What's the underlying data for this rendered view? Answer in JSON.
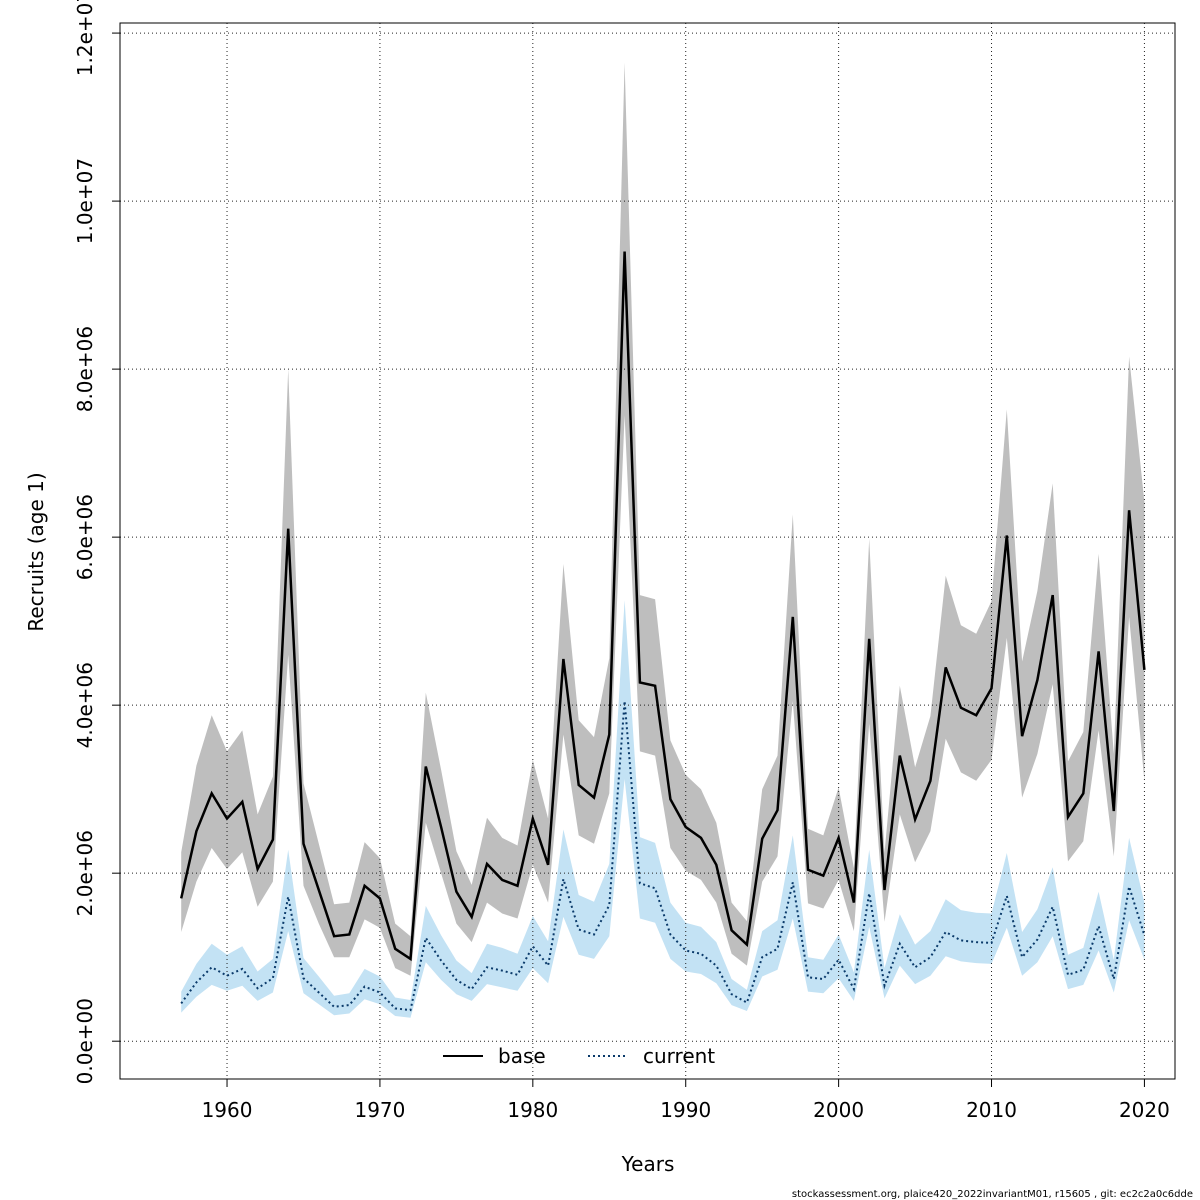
{
  "chart_data": {
    "type": "line",
    "xlabel": "Years",
    "ylabel": "Recruits (age 1)",
    "xlim": [
      1953,
      2022
    ],
    "ylim": [
      -450000,
      12120000
    ],
    "x_ticks": [
      1960,
      1970,
      1980,
      1990,
      2000,
      2010,
      2020
    ],
    "y_ticks": [
      0,
      2000000,
      4000000,
      6000000,
      8000000,
      10000000,
      12000000
    ],
    "y_tick_labels": [
      "0.0e+00",
      "2.0e+06",
      "4.0e+06",
      "6.0e+06",
      "8.0e+06",
      "1.0e+07",
      "1.2e+07"
    ],
    "grid": true,
    "legend_position": "bottom-center",
    "footer": "stockassessment.org, plaice420_2022invariantM01, r15605 , git: ec2c2a0c6dde",
    "x": [
      1957,
      1958,
      1959,
      1960,
      1961,
      1962,
      1963,
      1964,
      1965,
      1966,
      1967,
      1968,
      1969,
      1970,
      1971,
      1972,
      1973,
      1974,
      1975,
      1976,
      1977,
      1978,
      1979,
      1980,
      1981,
      1982,
      1983,
      1984,
      1985,
      1986,
      1987,
      1988,
      1989,
      1990,
      1991,
      1992,
      1993,
      1994,
      1995,
      1996,
      1997,
      1998,
      1999,
      2000,
      2001,
      2002,
      2003,
      2004,
      2005,
      2006,
      2007,
      2008,
      2009,
      2010,
      2011,
      2012,
      2013,
      2014,
      2015,
      2016,
      2017,
      2018,
      2019,
      2020
    ],
    "series": [
      {
        "name": "base",
        "line_color": "#000000",
        "band_color": "#bebebe",
        "dash": "solid",
        "values": [
          1700000,
          2500000,
          2950000,
          2650000,
          2850000,
          2050000,
          2400000,
          6100000,
          2350000,
          1800000,
          1250000,
          1270000,
          1850000,
          1700000,
          1100000,
          980000,
          3270000,
          2550000,
          1780000,
          1480000,
          2110000,
          1920000,
          1850000,
          2650000,
          2100000,
          4550000,
          3050000,
          2900000,
          3650000,
          9400000,
          4270000,
          4230000,
          2880000,
          2550000,
          2420000,
          2100000,
          1320000,
          1150000,
          2410000,
          2750000,
          5050000,
          2040000,
          1970000,
          2420000,
          1650000,
          4790000,
          1800000,
          3400000,
          2640000,
          3100000,
          4450000,
          3970000,
          3880000,
          4200000,
          6020000,
          3630000,
          4300000,
          5310000,
          2670000,
          2950000,
          4640000,
          2740000,
          6320000,
          4420000
        ],
        "lower": [
          1300000,
          1900000,
          2300000,
          2050000,
          2250000,
          1600000,
          1900000,
          4600000,
          1850000,
          1400000,
          1000000,
          1000000,
          1450000,
          1350000,
          870000,
          780000,
          2600000,
          2000000,
          1400000,
          1180000,
          1650000,
          1520000,
          1460000,
          2100000,
          1650000,
          3650000,
          2450000,
          2350000,
          2950000,
          7450000,
          3450000,
          3400000,
          2300000,
          2030000,
          1920000,
          1650000,
          1040000,
          900000,
          1900000,
          2200000,
          4050000,
          1640000,
          1580000,
          1920000,
          1310000,
          3780000,
          1420000,
          2700000,
          2130000,
          2500000,
          3600000,
          3200000,
          3100000,
          3350000,
          4800000,
          2900000,
          3420000,
          4250000,
          2140000,
          2380000,
          3700000,
          2200000,
          5050000,
          3100000
        ],
        "upper": [
          2250000,
          3280000,
          3880000,
          3450000,
          3700000,
          2700000,
          3150000,
          8000000,
          3070000,
          2350000,
          1630000,
          1650000,
          2370000,
          2180000,
          1400000,
          1250000,
          4150000,
          3230000,
          2260000,
          1860000,
          2660000,
          2420000,
          2330000,
          3350000,
          2650000,
          5680000,
          3820000,
          3620000,
          4560000,
          11650000,
          5310000,
          5260000,
          3580000,
          3170000,
          3000000,
          2600000,
          1650000,
          1430000,
          3000000,
          3400000,
          6270000,
          2530000,
          2450000,
          3020000,
          2060000,
          5980000,
          2240000,
          4230000,
          3260000,
          3870000,
          5540000,
          4950000,
          4850000,
          5240000,
          7520000,
          4520000,
          5360000,
          6640000,
          3330000,
          3680000,
          5800000,
          3420000,
          8150000,
          6420000
        ]
      },
      {
        "name": "current",
        "line_color": "#000000",
        "band_color": "#c3e2f4",
        "dash": "dotted",
        "values": [
          450000,
          700000,
          880000,
          780000,
          860000,
          630000,
          750000,
          1720000,
          750000,
          580000,
          410000,
          430000,
          650000,
          580000,
          390000,
          370000,
          1230000,
          960000,
          730000,
          620000,
          880000,
          840000,
          790000,
          1130000,
          900000,
          1930000,
          1330000,
          1270000,
          1620000,
          4050000,
          1880000,
          1820000,
          1270000,
          1080000,
          1040000,
          900000,
          560000,
          460000,
          1000000,
          1100000,
          1890000,
          760000,
          740000,
          970000,
          620000,
          1760000,
          660000,
          1160000,
          880000,
          1000000,
          1300000,
          1200000,
          1180000,
          1170000,
          1730000,
          1000000,
          1210000,
          1600000,
          790000,
          850000,
          1370000,
          740000,
          1840000,
          1260000
        ],
        "lower": [
          340000,
          530000,
          670000,
          600000,
          660000,
          480000,
          580000,
          1310000,
          570000,
          440000,
          310000,
          330000,
          500000,
          440000,
          300000,
          280000,
          940000,
          730000,
          560000,
          480000,
          680000,
          640000,
          600000,
          870000,
          690000,
          1480000,
          1030000,
          980000,
          1250000,
          3120000,
          1460000,
          1410000,
          980000,
          830000,
          800000,
          690000,
          430000,
          360000,
          770000,
          850000,
          1460000,
          590000,
          570000,
          750000,
          480000,
          1360000,
          510000,
          900000,
          680000,
          780000,
          1010000,
          950000,
          930000,
          920000,
          1350000,
          780000,
          940000,
          1250000,
          620000,
          670000,
          1080000,
          580000,
          1440000,
          970000
        ],
        "upper": [
          590000,
          920000,
          1160000,
          1030000,
          1130000,
          830000,
          980000,
          2280000,
          990000,
          770000,
          540000,
          570000,
          860000,
          770000,
          520000,
          490000,
          1610000,
          1260000,
          960000,
          810000,
          1160000,
          1110000,
          1040000,
          1490000,
          1190000,
          2520000,
          1740000,
          1660000,
          2110000,
          5250000,
          2430000,
          2360000,
          1650000,
          1410000,
          1360000,
          1180000,
          740000,
          610000,
          1310000,
          1440000,
          2450000,
          1000000,
          970000,
          1270000,
          820000,
          2280000,
          870000,
          1510000,
          1150000,
          1310000,
          1690000,
          1560000,
          1530000,
          1520000,
          2240000,
          1300000,
          1570000,
          2070000,
          1030000,
          1110000,
          1780000,
          970000,
          2420000,
          1650000
        ]
      }
    ]
  }
}
